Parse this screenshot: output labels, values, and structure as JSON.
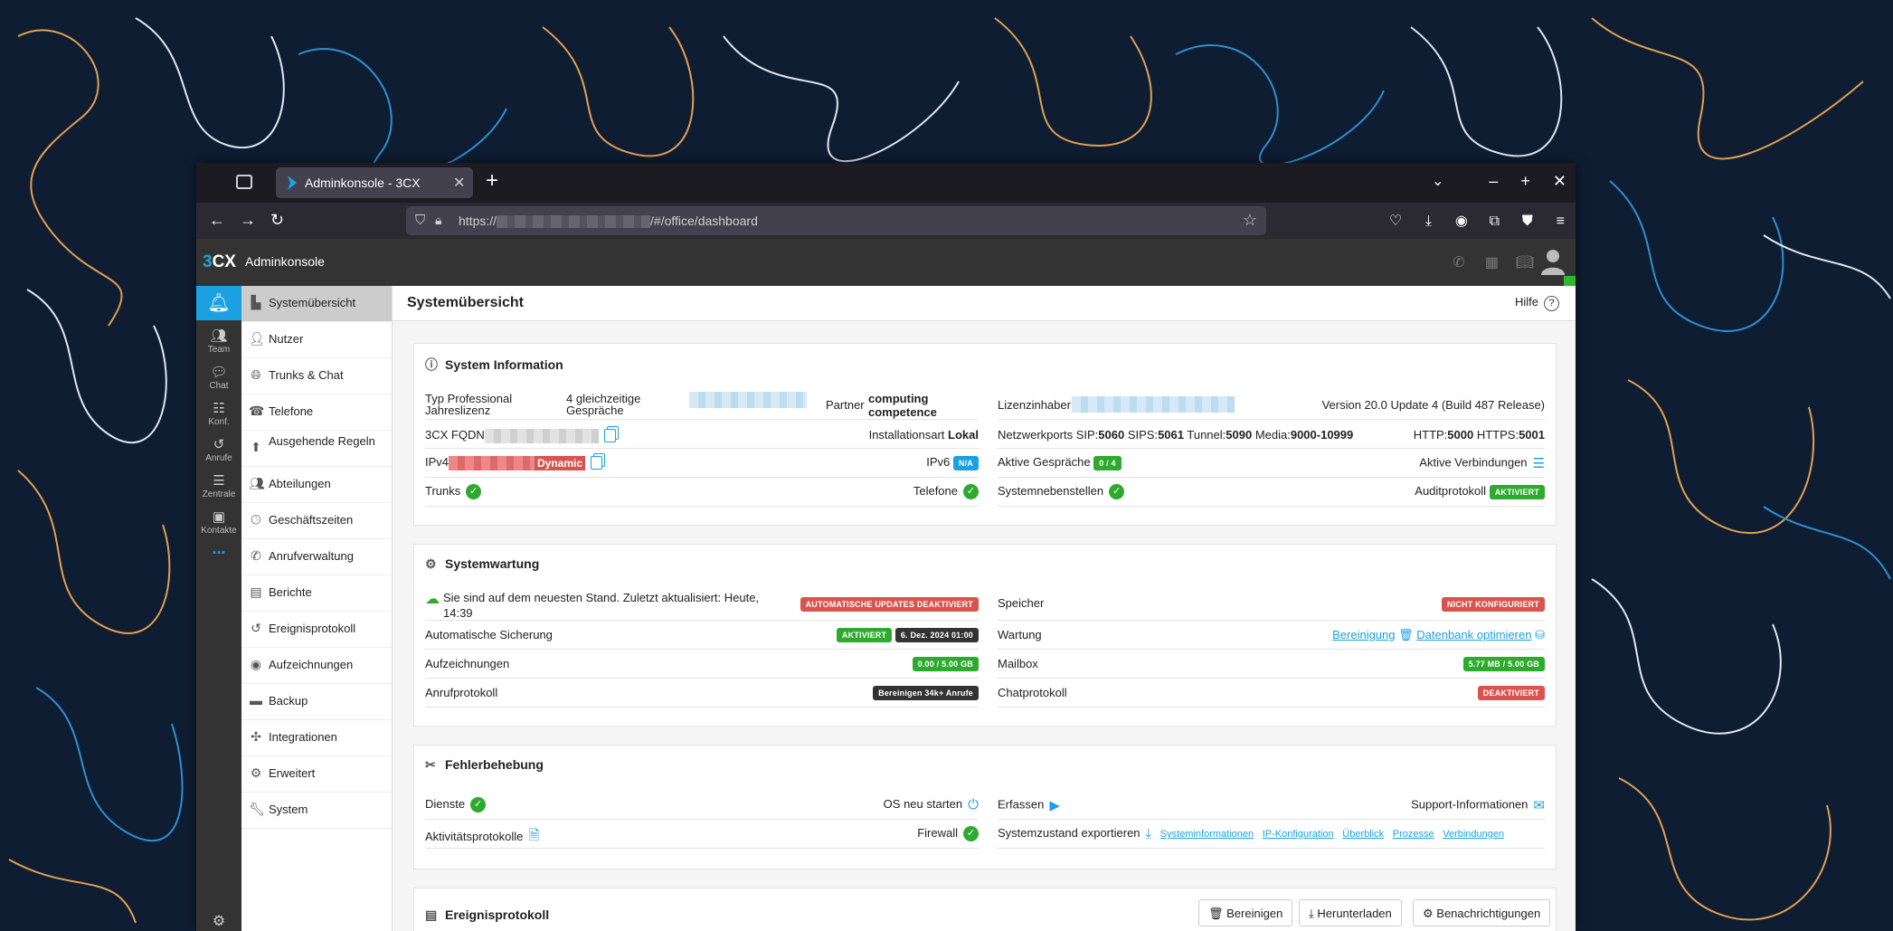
{
  "browser": {
    "tab_title": "Adminkonsole - 3CX",
    "url_prefix": "https://",
    "url_suffix": "/#/office/dashboard"
  },
  "app": {
    "logo": "3CX",
    "title": "Adminkonsole"
  },
  "rail": {
    "items": [
      {
        "label": "Team"
      },
      {
        "label": "Chat"
      },
      {
        "label": "Konf."
      },
      {
        "label": "Anrufe"
      },
      {
        "label": "Zentrale"
      },
      {
        "label": "Kontakte"
      }
    ],
    "more": "..."
  },
  "menu": {
    "items": [
      {
        "label": "Systemübersicht"
      },
      {
        "label": "Nutzer"
      },
      {
        "label": "Trunks & Chat"
      },
      {
        "label": "Telefone"
      },
      {
        "label": "Ausgehende Regeln"
      },
      {
        "label": "Abteilungen"
      },
      {
        "label": "Geschäftszeiten"
      },
      {
        "label": "Anrufverwaltung"
      },
      {
        "label": "Berichte"
      },
      {
        "label": "Ereignisprotokoll"
      },
      {
        "label": "Aufzeichnungen"
      },
      {
        "label": "Backup"
      },
      {
        "label": "Integrationen"
      },
      {
        "label": "Erweitert"
      },
      {
        "label": "System"
      }
    ]
  },
  "page": {
    "title": "Systemübersicht",
    "help": "Hilfe"
  },
  "sysinfo": {
    "title": "System Information",
    "typ_label": "Typ Professional Jahreslizenz",
    "calls_label": "4 gleichzeitige Gespräche",
    "partner_label": "Partner",
    "partner_value": "computing competence",
    "licensee_label": "Lizenzinhaber",
    "version": "Version 20.0 Update 4 (Build 487 Release)",
    "fqdn_label": "3CX FQDN",
    "install_label": "Installationsart",
    "install_value": "Lokal",
    "ports_label": "Netzwerkports SIP:",
    "sip": "5060",
    "sips_label": "SIPS:",
    "sips": "5061",
    "tunnel_label": "Tunnel:",
    "tunnel": "5090",
    "media_label": "Media:",
    "media": "9000-10999",
    "http_label": "HTTP:",
    "http": "5000",
    "https_label": "HTTPS:",
    "https": "5001",
    "ipv4_label": "IPv4",
    "ipv4_badge": "Dynamic",
    "ipv6_label": "IPv6",
    "ipv6_badge": "N/A",
    "active_calls_label": "Aktive Gespräche",
    "active_calls_badge": "0 / 4",
    "active_conn_label": "Aktive Verbindungen",
    "trunks_label": "Trunks",
    "phones_label": "Telefone",
    "ext_label": "Systemnebenstellen",
    "audit_label": "Auditprotokoll",
    "audit_badge": "AKTIVIERT"
  },
  "maint": {
    "title": "Systemwartung",
    "uptodate": "Sie sind auf dem neuesten Stand. Zuletzt aktualisiert: Heute, 14:39",
    "autoupdate_badge": "AUTOMATISCHE UPDATES DEAKTIVIERT",
    "storage_label": "Speicher",
    "storage_badge": "NICHT KONFIGURIERT",
    "backup_label": "Automatische Sicherung",
    "backup_badge": "AKTIVIERT",
    "backup_date": "6. Dez. 2024 01:00",
    "wartung_label": "Wartung",
    "cleanup_link": "Bereinigung",
    "optimize_link": "Datenbank optimieren",
    "rec_label": "Aufzeichnungen",
    "rec_badge": "0.00 / 5.00 GB",
    "mailbox_label": "Mailbox",
    "mailbox_badge": "5.77 MB / 5.00 GB",
    "calllog_label": "Anrufprotokoll",
    "calllog_badge": "Bereinigen 34k+ Anrufe",
    "chatlog_label": "Chatprotokoll",
    "chatlog_badge": "DEAKTIVIERT"
  },
  "trouble": {
    "title": "Fehlerbehebung",
    "services_label": "Dienste",
    "restart_label": "OS neu starten",
    "capture_label": "Erfassen",
    "support_label": "Support-Informationen",
    "activity_label": "Aktivitätsprotokolle",
    "firewall_label": "Firewall",
    "export_label": "Systemzustand exportieren",
    "export_links": [
      "Systeminformationen",
      "IP-Konfiguration",
      "Überblick",
      "Prozesse",
      "Verbindungen"
    ]
  },
  "events": {
    "title": "Ereignisprotokoll",
    "clean_btn": "Bereinigen",
    "download_btn": "Herunterladen",
    "notify_btn": "Benachrichtigungen"
  },
  "colors": {
    "accent": "#1ba1e2",
    "green": "#2eaa2e",
    "red": "#d9534f"
  }
}
